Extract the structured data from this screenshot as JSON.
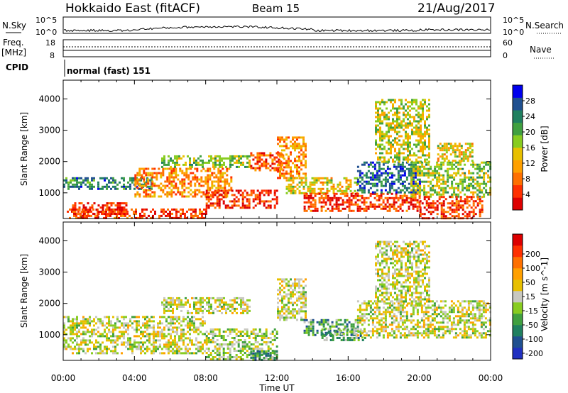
{
  "header": {
    "title": "Hokkaido East (fitACF)",
    "beam": "Beam 15",
    "date": "21/Aug/2017"
  },
  "strips": {
    "nsky_label": "N.Sky",
    "nsky_ticks": [
      "10^5",
      "10^0"
    ],
    "nsearch_label": "N.Search",
    "nsearch_ticks": [
      "10^5",
      "10^0"
    ],
    "freq_label_line1": "Freq.",
    "freq_label_line2": "[MHz]",
    "freq_ticks": [
      "18",
      "8"
    ],
    "nave_label": "Nave",
    "nave_ticks": [
      "60",
      "0"
    ],
    "cpid_label": "CPID",
    "cpid_text": "normal (fast) 151"
  },
  "chart_data": [
    {
      "type": "heatmap",
      "title": "",
      "xlabel": "",
      "ylabel": "Slant Range [km]",
      "x_ticks": [
        "00:00",
        "04:00",
        "08:00",
        "12:00",
        "16:00",
        "20:00",
        "00:00"
      ],
      "xlim_hours": [
        0,
        24
      ],
      "y_ticks": [
        1000,
        2000,
        3000,
        4000
      ],
      "ylim": [
        180,
        4600
      ],
      "colorbar": {
        "label": "Power [dB]",
        "ticks": [
          "28",
          "24",
          "20",
          "16",
          "12",
          "8",
          "4"
        ],
        "colors": [
          "#dd0000",
          "#ff3000",
          "#ff7000",
          "#ffa000",
          "#e8c000",
          "#88cc20",
          "#40a040",
          "#208060",
          "#205090",
          "#0000ee"
        ]
      },
      "regions": [
        {
          "t0": 0.2,
          "t1": 8.0,
          "r0": 200,
          "r1": 500,
          "level": 0.15
        },
        {
          "t0": 0.5,
          "t1": 3.5,
          "r0": 300,
          "r1": 700,
          "level": 0.1
        },
        {
          "t0": 0.0,
          "t1": 5.0,
          "r0": 1100,
          "r1": 1500,
          "level": 0.75
        },
        {
          "t0": 4.0,
          "t1": 9.5,
          "r0": 900,
          "r1": 1800,
          "level": 0.3
        },
        {
          "t0": 8.0,
          "t1": 12.0,
          "r0": 500,
          "r1": 1100,
          "level": 0.1
        },
        {
          "t0": 5.5,
          "t1": 10.5,
          "r0": 1800,
          "r1": 2200,
          "level": 0.55
        },
        {
          "t0": 10.5,
          "t1": 12.3,
          "r0": 1700,
          "r1": 2300,
          "level": 0.2
        },
        {
          "t0": 12.0,
          "t1": 13.6,
          "r0": 1500,
          "r1": 2800,
          "level": 0.3
        },
        {
          "t0": 12.5,
          "t1": 16.5,
          "r0": 1000,
          "r1": 1500,
          "level": 0.45
        },
        {
          "t0": 13.5,
          "t1": 20.0,
          "r0": 400,
          "r1": 1000,
          "level": 0.15
        },
        {
          "t0": 16.5,
          "t1": 20.0,
          "r0": 1000,
          "r1": 2000,
          "level": 0.8
        },
        {
          "t0": 17.5,
          "t1": 20.5,
          "r0": 2000,
          "r1": 4000,
          "level": 0.5
        },
        {
          "t0": 19.5,
          "t1": 24.0,
          "r0": 900,
          "r1": 2000,
          "level": 0.55
        },
        {
          "t0": 20.0,
          "t1": 23.5,
          "r0": 200,
          "r1": 900,
          "level": 0.15
        },
        {
          "t0": 21.0,
          "t1": 23.0,
          "r0": 2000,
          "r1": 2600,
          "level": 0.45
        }
      ]
    },
    {
      "type": "heatmap",
      "title": "",
      "xlabel": "Time UT",
      "ylabel": "Slant Range [km]",
      "x_ticks": [
        "00:00",
        "04:00",
        "08:00",
        "12:00",
        "16:00",
        "20:00",
        "00:00"
      ],
      "xlim_hours": [
        0,
        24
      ],
      "y_ticks": [
        1000,
        2000,
        3000,
        4000
      ],
      "ylim": [
        180,
        4600
      ],
      "colorbar": {
        "label": "Velocity [m s^-1]",
        "ticks": [
          "200",
          "100",
          "50",
          "15",
          "-15",
          "-50",
          "-100",
          "-200"
        ],
        "colors": [
          "#2030c0",
          "#205090",
          "#208060",
          "#40a040",
          "#88cc20",
          "#c8c8c0",
          "#e8c000",
          "#ffa000",
          "#ff7000",
          "#ff3000",
          "#dd0000"
        ]
      },
      "regions": [
        {
          "t0": 0.0,
          "t1": 8.0,
          "r0": 400,
          "r1": 1600,
          "level": 0.5
        },
        {
          "t0": 5.5,
          "t1": 10.5,
          "r0": 1700,
          "r1": 2200,
          "level": 0.5
        },
        {
          "t0": 8.0,
          "t1": 12.0,
          "r0": 200,
          "r1": 1200,
          "level": 0.45
        },
        {
          "t0": 12.0,
          "t1": 13.6,
          "r0": 1500,
          "r1": 2800,
          "level": 0.5
        },
        {
          "t0": 13.5,
          "t1": 16.5,
          "r0": 1000,
          "r1": 1500,
          "level": 0.3
        },
        {
          "t0": 14.5,
          "t1": 17.0,
          "r0": 800,
          "r1": 1200,
          "level": 0.35
        },
        {
          "t0": 16.5,
          "t1": 24.0,
          "r0": 900,
          "r1": 2100,
          "level": 0.5
        },
        {
          "t0": 17.5,
          "t1": 20.5,
          "r0": 2000,
          "r1": 4000,
          "level": 0.5
        },
        {
          "t0": 10.5,
          "t1": 12.0,
          "r0": 200,
          "r1": 500,
          "level": 0.3
        }
      ]
    }
  ]
}
